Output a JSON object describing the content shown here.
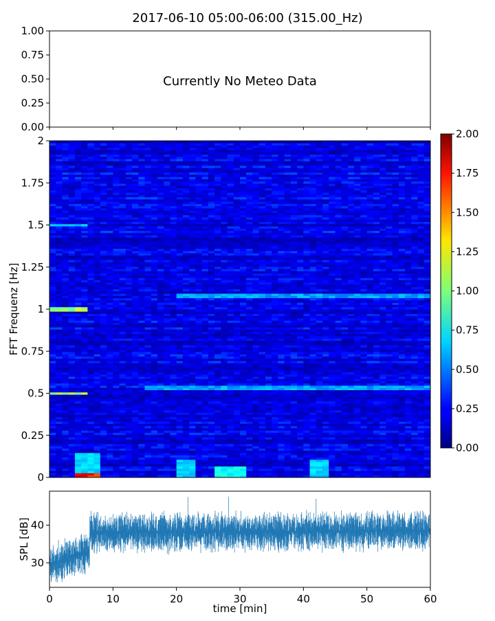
{
  "title": "2017-06-10 05:00-06:00 (315.00_Hz)",
  "chart_data": [
    {
      "type": "line",
      "name": "meteo",
      "annotation": "Currently No Meteo Data",
      "ylim": [
        0,
        1
      ],
      "yticks": [
        "0.00",
        "0.25",
        "0.50",
        "0.75",
        "1.00"
      ],
      "xlim": [
        0,
        60
      ],
      "xticks": [
        0,
        10,
        20,
        30,
        40,
        50,
        60
      ],
      "series": []
    },
    {
      "type": "heatmap",
      "name": "spectrogram",
      "ylabel": "FFT Frequenz [Hz]",
      "xlim": [
        0,
        60
      ],
      "ylim": [
        0,
        2
      ],
      "yticks": [
        "0",
        "0.25",
        "0.5",
        "0.75",
        "1",
        "1.25",
        "1.5",
        "1.75",
        "2"
      ],
      "colormap": "jet",
      "background_level": 0.2,
      "hot_spots": [
        {
          "t0": 0,
          "t1": 6.2,
          "f": 0.5,
          "level": 1.2
        },
        {
          "t0": 0,
          "t1": 6.2,
          "f": 1.0,
          "level": 1.1
        },
        {
          "t0": 0,
          "t1": 6.2,
          "f": 1.5,
          "level": 0.7
        },
        {
          "t0": 4,
          "t1": 7.5,
          "f0": 0,
          "f1": 0.15,
          "level": 0.7
        },
        {
          "t0": 4,
          "t1": 7.5,
          "f0": 0,
          "f1": 0.02,
          "level": 1.8
        },
        {
          "t0": 20,
          "t1": 23,
          "f0": 0,
          "f1": 0.1,
          "level": 0.7
        },
        {
          "t0": 26.5,
          "t1": 30.5,
          "f0": 0,
          "f1": 0.06,
          "level": 0.8
        },
        {
          "t0": 41,
          "t1": 44,
          "f0": 0,
          "f1": 0.1,
          "level": 0.7
        },
        {
          "t0": 15,
          "t1": 60,
          "f": 0.53,
          "level": 0.6
        },
        {
          "t0": 20,
          "t1": 60,
          "f": 1.08,
          "level": 0.6
        }
      ],
      "colorbar": {
        "range": [
          0,
          2
        ],
        "ticks": [
          "0.00",
          "0.25",
          "0.50",
          "0.75",
          "1.00",
          "1.25",
          "1.50",
          "1.75",
          "2.00"
        ]
      }
    },
    {
      "type": "line",
      "name": "spl",
      "ylabel": "SPL [dB]",
      "xlabel": "time [min]",
      "xlim": [
        0,
        60
      ],
      "xticks": [
        "0",
        "10",
        "20",
        "30",
        "40",
        "50",
        "60"
      ],
      "ylim": [
        23.5,
        49
      ],
      "yticks": [
        "30",
        "40"
      ],
      "color": "#1f77b4",
      "segments": [
        {
          "t0": 0,
          "t1": 6.3,
          "mean_start": 29.5,
          "mean_end": 33
        },
        {
          "t0": 6.3,
          "t1": 60,
          "mean_start": 38,
          "mean_end": 38.5
        }
      ],
      "spikes": [
        {
          "t": 21.8,
          "value": 47.5
        },
        {
          "t": 28.2,
          "value": 47.5
        },
        {
          "t": 42,
          "value": 47
        }
      ]
    }
  ]
}
